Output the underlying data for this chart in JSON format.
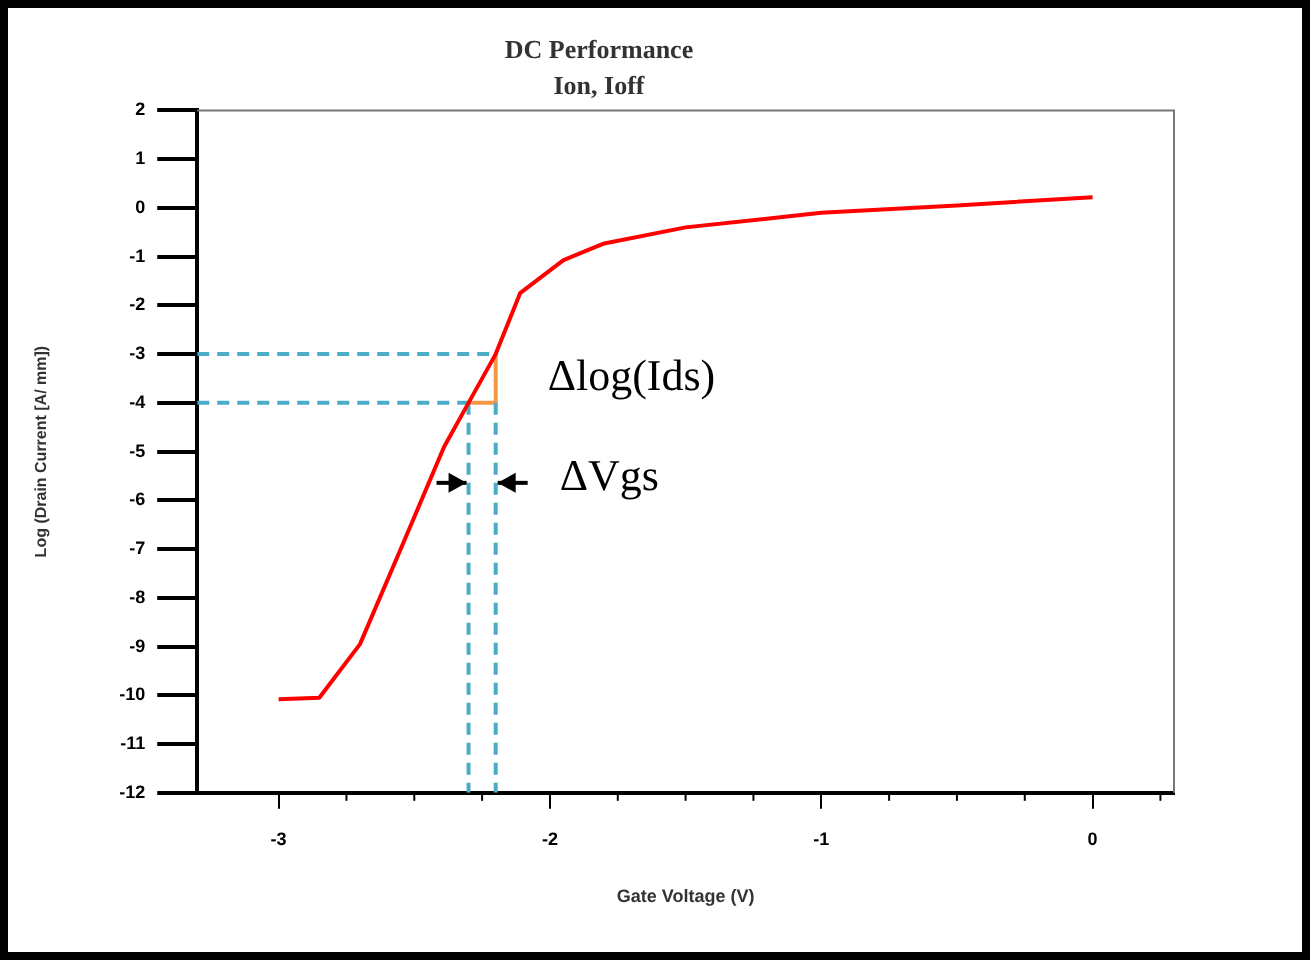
{
  "chart_data": {
    "type": "line",
    "title": "DC Performance",
    "subtitle": "Ion, Ioff",
    "xlabel": "Gate Voltage (V)",
    "ylabel": "Log (Drain Current [A/ mm])",
    "xlim": [
      -3.3,
      0.3
    ],
    "ylim": [
      -12,
      2
    ],
    "xticks": [
      -3,
      {
        "value": -2.75,
        "label": null
      },
      {
        "value": -2.5,
        "label": null
      },
      {
        "value": -2.25,
        "label": null
      },
      -2,
      {
        "value": -1.75,
        "label": null
      },
      {
        "value": -1.5,
        "label": null
      },
      {
        "value": -1.25,
        "label": null
      },
      -1,
      {
        "value": -0.75,
        "label": null
      },
      {
        "value": -0.5,
        "label": null
      },
      {
        "value": -0.25,
        "label": null
      },
      0,
      {
        "value": 0.25,
        "label": null
      }
    ],
    "yticks": [
      -12,
      -11,
      -10,
      -9,
      -8,
      -7,
      -6,
      -5,
      -4,
      -3,
      -2,
      -1,
      0,
      1,
      2
    ],
    "grid": false,
    "legend": false,
    "marker": "none",
    "series": [
      {
        "color": "#ff0000",
        "line_style": "solid",
        "x": [
          -3,
          -2.85,
          -2.7,
          -2.55,
          -2.39,
          -2.3,
          -2.2,
          -2.11,
          -1.95,
          -1.8,
          -1.5,
          -1,
          -0.5,
          0
        ],
        "values": [
          -10.08,
          -10.05,
          -8.95,
          -7.0,
          -4.9,
          -4.0,
          -3.0,
          -1.75,
          -1.07,
          -0.73,
          -0.4,
          -0.1,
          0.05,
          0.22
        ]
      },
      {
        "color": "#4bacc6",
        "line_style": "dashed",
        "x": [
          -3.3,
          -2.2
        ],
        "values": [
          -3,
          -3
        ]
      },
      {
        "color": "#4bacc6",
        "line_style": "dashed",
        "x": [
          -3.3,
          -2.3
        ],
        "values": [
          -4,
          -4
        ]
      },
      {
        "color": "#4bacc6",
        "line_style": "dashed",
        "x": [
          -2.3,
          -2.3
        ],
        "values": [
          -4,
          -12
        ]
      },
      {
        "color": "#4bacc6",
        "line_style": "dashed",
        "x": [
          -2.2,
          -2.2
        ],
        "values": [
          -4,
          -12
        ]
      },
      {
        "color": "#f79646",
        "line_style": "solid",
        "x": [
          -2.3,
          -2.2,
          -2.2
        ],
        "values": [
          -4,
          -4,
          -3
        ]
      }
    ],
    "annotations": [
      "Δlog(Ids)",
      "ΔVgs"
    ]
  }
}
